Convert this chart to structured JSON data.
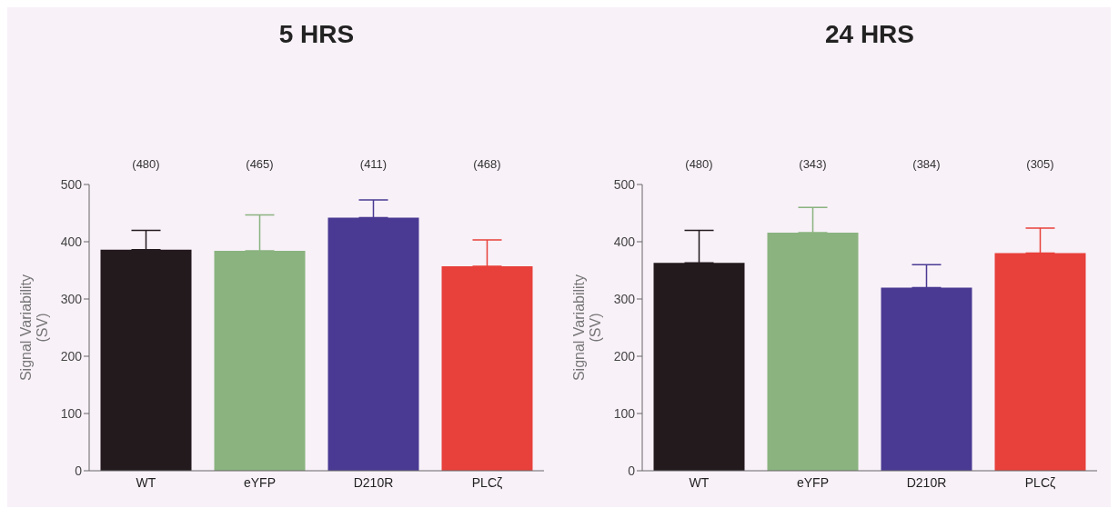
{
  "chart_data": [
    {
      "type": "bar",
      "title": "5 HRS",
      "ylabel": "Signal Variability\n(SV)",
      "categories": [
        "WT",
        "eYFP",
        "D210R",
        "PLCζ"
      ],
      "values": [
        386,
        384,
        442,
        357
      ],
      "errors": [
        [
          386,
          420
        ],
        [
          384,
          447
        ],
        [
          442,
          473
        ],
        [
          357,
          403
        ]
      ],
      "colors": [
        "#231a1e",
        "#8ab37f",
        "#4a3a93",
        "#e8403a"
      ],
      "ylim": [
        0,
        500
      ],
      "yticks": [
        0,
        100,
        200,
        300,
        400,
        500
      ],
      "annotations": [
        "(480)",
        "(465)",
        "(411)",
        "(468)"
      ]
    },
    {
      "type": "bar",
      "title": "24 HRS",
      "ylabel": "Signal Variability\n(SV)",
      "categories": [
        "WT",
        "eYFP",
        "D210R",
        "PLCζ"
      ],
      "values": [
        363,
        416,
        320,
        380
      ],
      "errors": [
        [
          363,
          420
        ],
        [
          416,
          460
        ],
        [
          320,
          360
        ],
        [
          380,
          424
        ]
      ],
      "colors": [
        "#231a1e",
        "#8ab37f",
        "#4a3a93",
        "#e8403a"
      ],
      "ylim": [
        0,
        500
      ],
      "yticks": [
        0,
        100,
        200,
        300,
        400,
        500
      ],
      "annotations": [
        "(480)",
        "(343)",
        "(384)",
        "(305)"
      ]
    }
  ]
}
